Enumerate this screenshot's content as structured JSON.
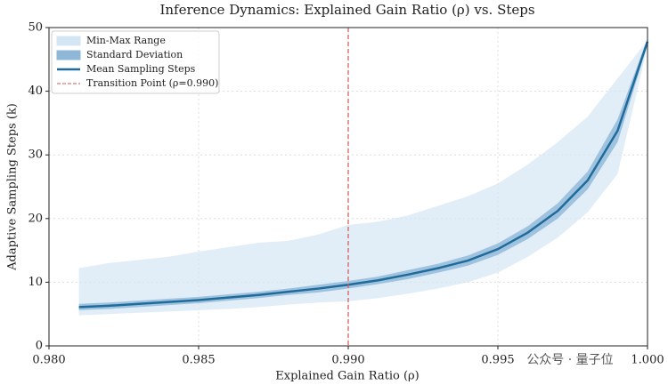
{
  "chart_data": {
    "type": "line",
    "title": "Inference Dynamics: Explained Gain Ratio (ρ) vs. Steps",
    "x_label": "Explained Gain Ratio (ρ)",
    "y_label": "Adaptive Sampling Steps (k)",
    "watermark": "公众号 · 量子位",
    "x": [
      0.981,
      0.982,
      0.983,
      0.984,
      0.985,
      0.986,
      0.987,
      0.988,
      0.989,
      0.99,
      0.991,
      0.992,
      0.993,
      0.994,
      0.995,
      0.996,
      0.997,
      0.998,
      0.999,
      1.0
    ],
    "series": [
      {
        "name": "Min-Max Range",
        "color": "#d4e5f4",
        "upper": [
          12.2,
          13.0,
          13.5,
          14.0,
          14.8,
          15.5,
          16.2,
          16.5,
          17.5,
          19.0,
          19.5,
          20.5,
          22.0,
          23.5,
          25.5,
          28.5,
          32.0,
          36.0,
          42.0,
          48.0
        ],
        "lower": [
          4.8,
          5.0,
          5.2,
          5.4,
          5.6,
          5.8,
          6.1,
          6.5,
          6.8,
          7.0,
          7.5,
          8.2,
          9.0,
          10.0,
          11.5,
          14.0,
          17.0,
          21.0,
          27.0,
          47.0
        ]
      },
      {
        "name": "Standard Deviation",
        "color": "#8fb8d8",
        "upper": [
          6.6,
          6.8,
          7.1,
          7.4,
          7.7,
          8.1,
          8.5,
          9.0,
          9.6,
          10.2,
          10.9,
          11.9,
          12.9,
          14.2,
          16.1,
          18.8,
          22.4,
          27.4,
          35.6,
          48.3
        ],
        "lower": [
          5.6,
          5.8,
          6.1,
          6.4,
          6.7,
          7.1,
          7.5,
          8.0,
          8.4,
          9.0,
          9.7,
          10.5,
          11.5,
          12.6,
          14.3,
          16.8,
          20.0,
          24.6,
          32.0,
          47.3
        ]
      },
      {
        "name": "Mean Sampling Steps",
        "color": "#1f6b9c",
        "values": [
          6.1,
          6.3,
          6.6,
          6.9,
          7.2,
          7.6,
          8.0,
          8.5,
          9.0,
          9.6,
          10.3,
          11.2,
          12.2,
          13.4,
          15.2,
          17.8,
          21.2,
          26.0,
          33.8,
          47.8
        ]
      }
    ],
    "vline": {
      "name": "Transition Point (ρ=0.990)",
      "x": 0.99,
      "color": "#d9534f"
    },
    "xlim": [
      0.98,
      1.0
    ],
    "xticks": [
      {
        "value": 0.98,
        "label": "0.980"
      },
      {
        "value": 0.985,
        "label": "0.985"
      },
      {
        "value": 0.99,
        "label": "0.990"
      },
      {
        "value": 0.995,
        "label": "0.995"
      },
      {
        "value": 1.0,
        "label": "1.000"
      }
    ],
    "ylim": [
      0,
      50
    ],
    "yticks": [
      0,
      10,
      20,
      30,
      40,
      50
    ],
    "grid": true,
    "legend": "upper left"
  }
}
